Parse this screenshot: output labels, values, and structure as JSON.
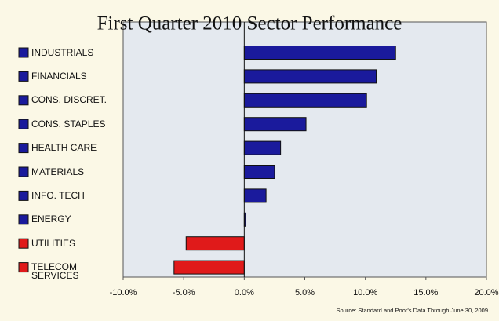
{
  "chart_data": {
    "type": "hbar",
    "title": "First Quarter 2010 Sector Performance",
    "source": "Source: Standard and Poor's Data Through June 30, 2009",
    "categories": [
      "INDUSTRIALS",
      "FINANCIALS",
      "CONS. DISCRET.",
      "CONS. STAPLES",
      "HEALTH CARE",
      "MATERIALS",
      "INFO. TECH",
      "ENERGY",
      "UTILITIES",
      "TELECOM\nSERVICES"
    ],
    "values": [
      12.5,
      10.9,
      10.1,
      5.1,
      3.0,
      2.5,
      1.8,
      0.1,
      -4.8,
      -5.8
    ],
    "colors": [
      "#1a1a9c",
      "#1a1a9c",
      "#1a1a9c",
      "#1a1a9c",
      "#1a1a9c",
      "#1a1a9c",
      "#1a1a9c",
      "#1a1a9c",
      "#e01a1a",
      "#e01a1a"
    ],
    "xlim": [
      -10,
      20
    ],
    "xticks": [
      {
        "value": -10,
        "label": "-10.0%"
      },
      {
        "value": -5,
        "label": "-5.0%"
      },
      {
        "value": 0,
        "label": "0.0%"
      },
      {
        "value": 5,
        "label": "5.0%"
      },
      {
        "value": 10,
        "label": "10.0%"
      },
      {
        "value": 15,
        "label": "15.0%"
      },
      {
        "value": 20,
        "label": "20.0%"
      }
    ],
    "grid": false
  }
}
